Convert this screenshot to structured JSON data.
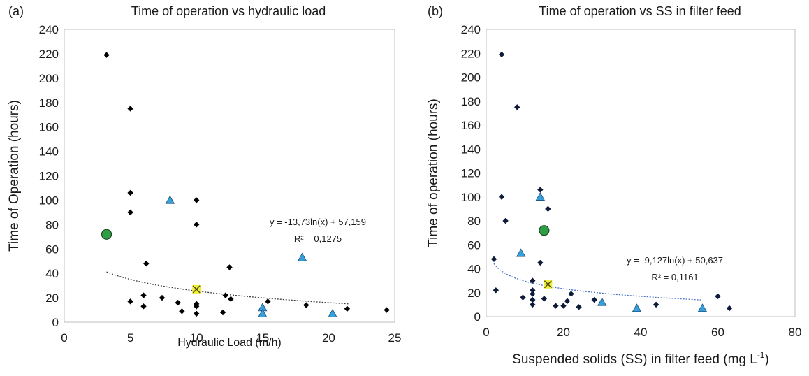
{
  "chart_data": [
    {
      "panel_label": "(a)",
      "type": "scatter",
      "title": "Time of operation vs hydraulic load",
      "xlabel": "Hydraulic Load (m/h)",
      "ylabel": "Time of Operation (hours)",
      "xlim": [
        0,
        25
      ],
      "ylim": [
        0,
        240
      ],
      "xticks": [
        0,
        5,
        10,
        15,
        20,
        25
      ],
      "yticks": [
        0,
        20,
        40,
        60,
        80,
        100,
        120,
        140,
        160,
        180,
        200,
        220,
        240
      ],
      "grid": false,
      "series": [
        {
          "marker": "diamond",
          "color": "#000000",
          "points": [
            [
              3.2,
              219
            ],
            [
              5,
              175
            ],
            [
              5,
              106
            ],
            [
              5,
              90
            ],
            [
              5,
              17
            ],
            [
              6,
              22
            ],
            [
              6,
              13
            ],
            [
              6.2,
              48
            ],
            [
              7.4,
              20
            ],
            [
              8.6,
              16
            ],
            [
              8.9,
              9
            ],
            [
              10,
              100
            ],
            [
              10,
              80
            ],
            [
              10,
              15
            ],
            [
              10,
              13
            ],
            [
              10,
              7
            ],
            [
              12,
              8
            ],
            [
              12.2,
              22
            ],
            [
              12.5,
              45
            ],
            [
              12.6,
              19
            ],
            [
              15.4,
              17
            ],
            [
              18.3,
              14
            ],
            [
              21.4,
              11
            ],
            [
              24.4,
              10
            ]
          ]
        },
        {
          "marker": "triangle",
          "color": "#35a0dc",
          "points": [
            [
              8,
              100
            ],
            [
              15,
              12
            ],
            [
              15,
              7
            ],
            [
              18,
              53
            ],
            [
              20.3,
              7
            ]
          ]
        },
        {
          "marker": "circle",
          "color": "#2e9e46",
          "points": [
            [
              3.2,
              72
            ]
          ]
        },
        {
          "marker": "x-square",
          "color": "#f0ef3a",
          "points": [
            [
              10,
              27
            ]
          ]
        }
      ],
      "trendline": {
        "a": -13.73,
        "b": 57.159,
        "x_from": 3.2,
        "x_to": 21.5,
        "color": "#3a3a3a"
      },
      "annotations": [
        "y = -13,73ln(x) + 57,159",
        "R² = 0,1275"
      ]
    },
    {
      "panel_label": "(b)",
      "type": "scatter",
      "title": "Time of operation vs SS in filter feed",
      "xlabel": "Suspended solids (SS) in filter feed (mg L",
      "xlabel_superscript": "-1",
      "xlabel_suffix": ")",
      "ylabel": "Time of operation  (hours)",
      "xlim": [
        0,
        80
      ],
      "ylim": [
        0,
        240
      ],
      "xticks": [
        0,
        20,
        40,
        60,
        80
      ],
      "yticks": [
        0,
        20,
        40,
        60,
        80,
        100,
        120,
        140,
        160,
        180,
        200,
        220,
        240
      ],
      "grid": false,
      "series": [
        {
          "marker": "diamond",
          "color": "#0d1a3a",
          "points": [
            [
              4,
              219
            ],
            [
              8,
              175
            ],
            [
              2,
              48
            ],
            [
              2.5,
              22
            ],
            [
              4,
              100
            ],
            [
              5,
              80
            ],
            [
              14,
              106
            ],
            [
              16,
              90
            ],
            [
              14,
              45
            ],
            [
              9.5,
              16
            ],
            [
              12,
              30
            ],
            [
              12,
              22
            ],
            [
              12,
              19
            ],
            [
              12,
              14
            ],
            [
              12,
              10
            ],
            [
              15,
              15
            ],
            [
              18,
              9
            ],
            [
              20,
              9
            ],
            [
              21,
              13
            ],
            [
              22,
              19
            ],
            [
              24,
              8
            ],
            [
              28,
              14
            ],
            [
              44,
              10
            ],
            [
              60,
              17
            ],
            [
              63,
              7
            ]
          ]
        },
        {
          "marker": "triangle",
          "color": "#35a0dc",
          "points": [
            [
              14,
              100
            ],
            [
              9,
              53
            ],
            [
              30,
              12
            ],
            [
              39,
              7
            ],
            [
              56,
              7
            ]
          ]
        },
        {
          "marker": "circle",
          "color": "#2e9e46",
          "points": [
            [
              15,
              72
            ]
          ]
        },
        {
          "marker": "x-square",
          "color": "#f0ef3a",
          "points": [
            [
              16,
              27
            ]
          ]
        }
      ],
      "trendline": {
        "a": -9.127,
        "b": 50.637,
        "x_from": 2,
        "x_to": 56,
        "color": "#4a72c4"
      },
      "annotations": [
        "y = -9,127ln(x) + 50,637",
        "R² = 0,1161"
      ]
    }
  ]
}
